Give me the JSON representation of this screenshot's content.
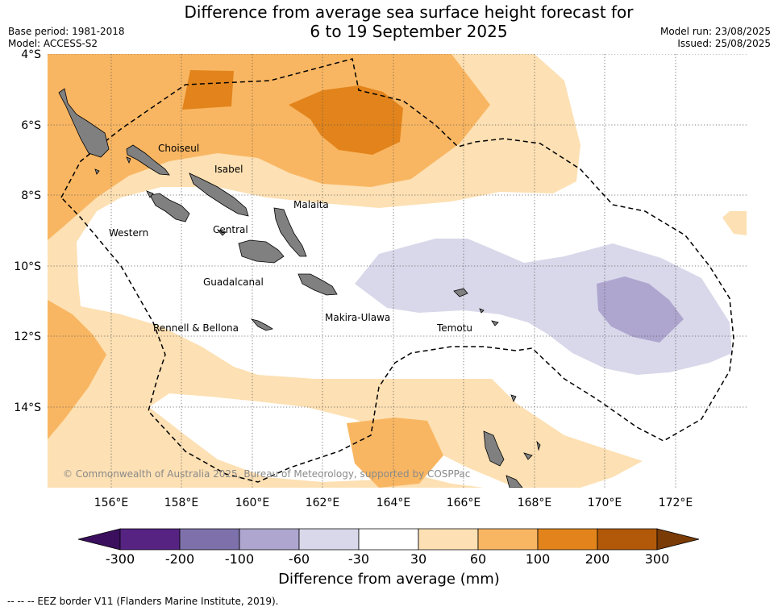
{
  "title_line1": "Difference from average sea surface height forecast for",
  "title_line2": "6 to 19 September 2025",
  "base_period": "Base period: 1981-2018",
  "model": "Model: ACCESS-S2",
  "model_run": "Model run: 23/08/2025",
  "issued": "Issued: 25/08/2025",
  "lat_labels": [
    "4°S",
    "6°S",
    "8°S",
    "10°S",
    "12°S",
    "14°S"
  ],
  "lon_labels": [
    "156°E",
    "158°E",
    "160°E",
    "162°E",
    "164°E",
    "166°E",
    "168°E",
    "170°E",
    "172°E"
  ],
  "places": {
    "choiseul": "Choiseul",
    "isabel": "Isabel",
    "malaita": "Malaita",
    "western": "Western",
    "central": "Central",
    "guadalcanal": "Guadalcanal",
    "makira": "Makira-Ulawa",
    "temotu": "Temotu",
    "rennell": "Rennell & Bellona"
  },
  "copyright": "© Commonwealth of Australia 2025, Bureau of Meteorology, supported by COSPPac",
  "colorbar": {
    "ticks": [
      "-300",
      "-200",
      "-100",
      "-60",
      "-30",
      "30",
      "60",
      "100",
      "200",
      "300"
    ],
    "colors": [
      "#3b0f5e",
      "#562383",
      "#7e71ab",
      "#aea6cf",
      "#d8d8ea",
      "#ffffff",
      "#fde0b3",
      "#f9b662",
      "#e2841b",
      "#b15909",
      "#7a3b06"
    ],
    "label": "Difference from average (mm)"
  },
  "footer": "--  --  -- EEZ border V11 (Flanders Marine Institute, 2019)."
}
